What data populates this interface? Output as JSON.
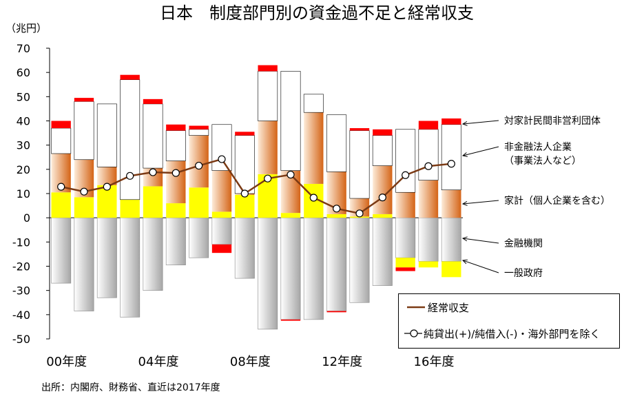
{
  "chart_data": {
    "type": "bar",
    "title": "日本　制度部門別の資金過不足と経常収支",
    "yunit": "（兆円）",
    "source": "出所：内閣府、財務省、直近は2017年度",
    "ylim": [
      -50,
      70
    ],
    "yticks": [
      "70",
      "60",
      "50",
      "40",
      "30",
      "20",
      "10",
      "0",
      "-10",
      "-20",
      "-30",
      "-40",
      "-50"
    ],
    "xtick_labels": [
      {
        "index": 0,
        "label": "00年度"
      },
      {
        "index": 4,
        "label": "04年度"
      },
      {
        "index": 8,
        "label": "08年度"
      },
      {
        "index": 12,
        "label": "12年度"
      },
      {
        "index": 16,
        "label": "16年度"
      }
    ],
    "categories": [
      "2000",
      "2001",
      "2002",
      "2003",
      "2004",
      "2005",
      "2006",
      "2007",
      "2008",
      "2009",
      "2010",
      "2011",
      "2012",
      "2013",
      "2014",
      "2015",
      "2016",
      "2017"
    ],
    "colors": {
      "household": "#ffff00",
      "corporate_light": "#fdebd8",
      "corporate_dark": "#d46417",
      "npish": "#ffffff",
      "financial": "#ff0000",
      "gov_light": "#ffffff",
      "gov_dark": "#a6a6a6",
      "current_account": "#7b3a14",
      "marker_fill": "#ffffff"
    },
    "series": [
      {
        "name": "家計（個人企業を含む）",
        "key": "household",
        "values": [
          10.5,
          8.5,
          13.5,
          7.5,
          13,
          6,
          12.5,
          2.5,
          9.5,
          18,
          2,
          14,
          1.5,
          0.5,
          1.5,
          -4,
          -2.5,
          -6.5
        ]
      },
      {
        "name": "非金融法人企業（事業法人など）",
        "key": "corporate",
        "values": [
          16,
          15.5,
          7.5,
          0,
          7.5,
          17.5,
          21.5,
          17,
          0.5,
          22,
          17.5,
          29.5,
          17.5,
          7.5,
          20,
          10.5,
          15.5,
          11.5
        ]
      },
      {
        "name": "対家計民間非営利団体",
        "key": "npish",
        "values": [
          10.5,
          24,
          26,
          49.5,
          26.5,
          12.5,
          2.5,
          19,
          24,
          20.5,
          41,
          7.5,
          23.5,
          28,
          12.5,
          26,
          21,
          27
        ]
      },
      {
        "name": "金融機関",
        "key": "financial",
        "values": [
          3,
          1.5,
          0,
          2,
          2,
          2.5,
          1.5,
          -3.5,
          1.5,
          2.5,
          -0.5,
          0,
          -0.5,
          1,
          2.5,
          -1.5,
          3.5,
          2.5
        ]
      },
      {
        "name": "一般政府",
        "key": "government",
        "values": [
          -27,
          -38.5,
          -33,
          -41,
          -30,
          -19.5,
          -16.5,
          -11,
          -25,
          -46,
          -42,
          -42,
          -38.5,
          -35,
          -28,
          -16.5,
          -18,
          -18
        ]
      }
    ],
    "line_series": [
      {
        "name": "経常収支",
        "values": [
          12.8,
          10.8,
          12.8,
          17.3,
          18.8,
          18.5,
          21.5,
          24.2,
          10.0,
          16.2,
          17.8,
          8.3,
          3.8,
          1.8,
          8.4,
          17.6,
          21.3,
          22.3
        ]
      }
    ],
    "right_labels": [
      {
        "text": "対家計民間非営利団体",
        "line2": "",
        "series": "npish"
      },
      {
        "text": "非金融法人企業",
        "line2": "（事業法人など）",
        "series": "corporate"
      },
      {
        "text": "家計（個人企業を含む）",
        "line2": "",
        "series": "household"
      },
      {
        "text": "金融機関",
        "line2": "",
        "series": "financial"
      },
      {
        "text": "一般政府",
        "line2": "",
        "series": "government"
      }
    ],
    "legend": [
      {
        "label": "経常収支",
        "style": "line"
      },
      {
        "label": "純貸出(+)/純借入(-)・海外部門を除く",
        "style": "marker"
      }
    ]
  }
}
